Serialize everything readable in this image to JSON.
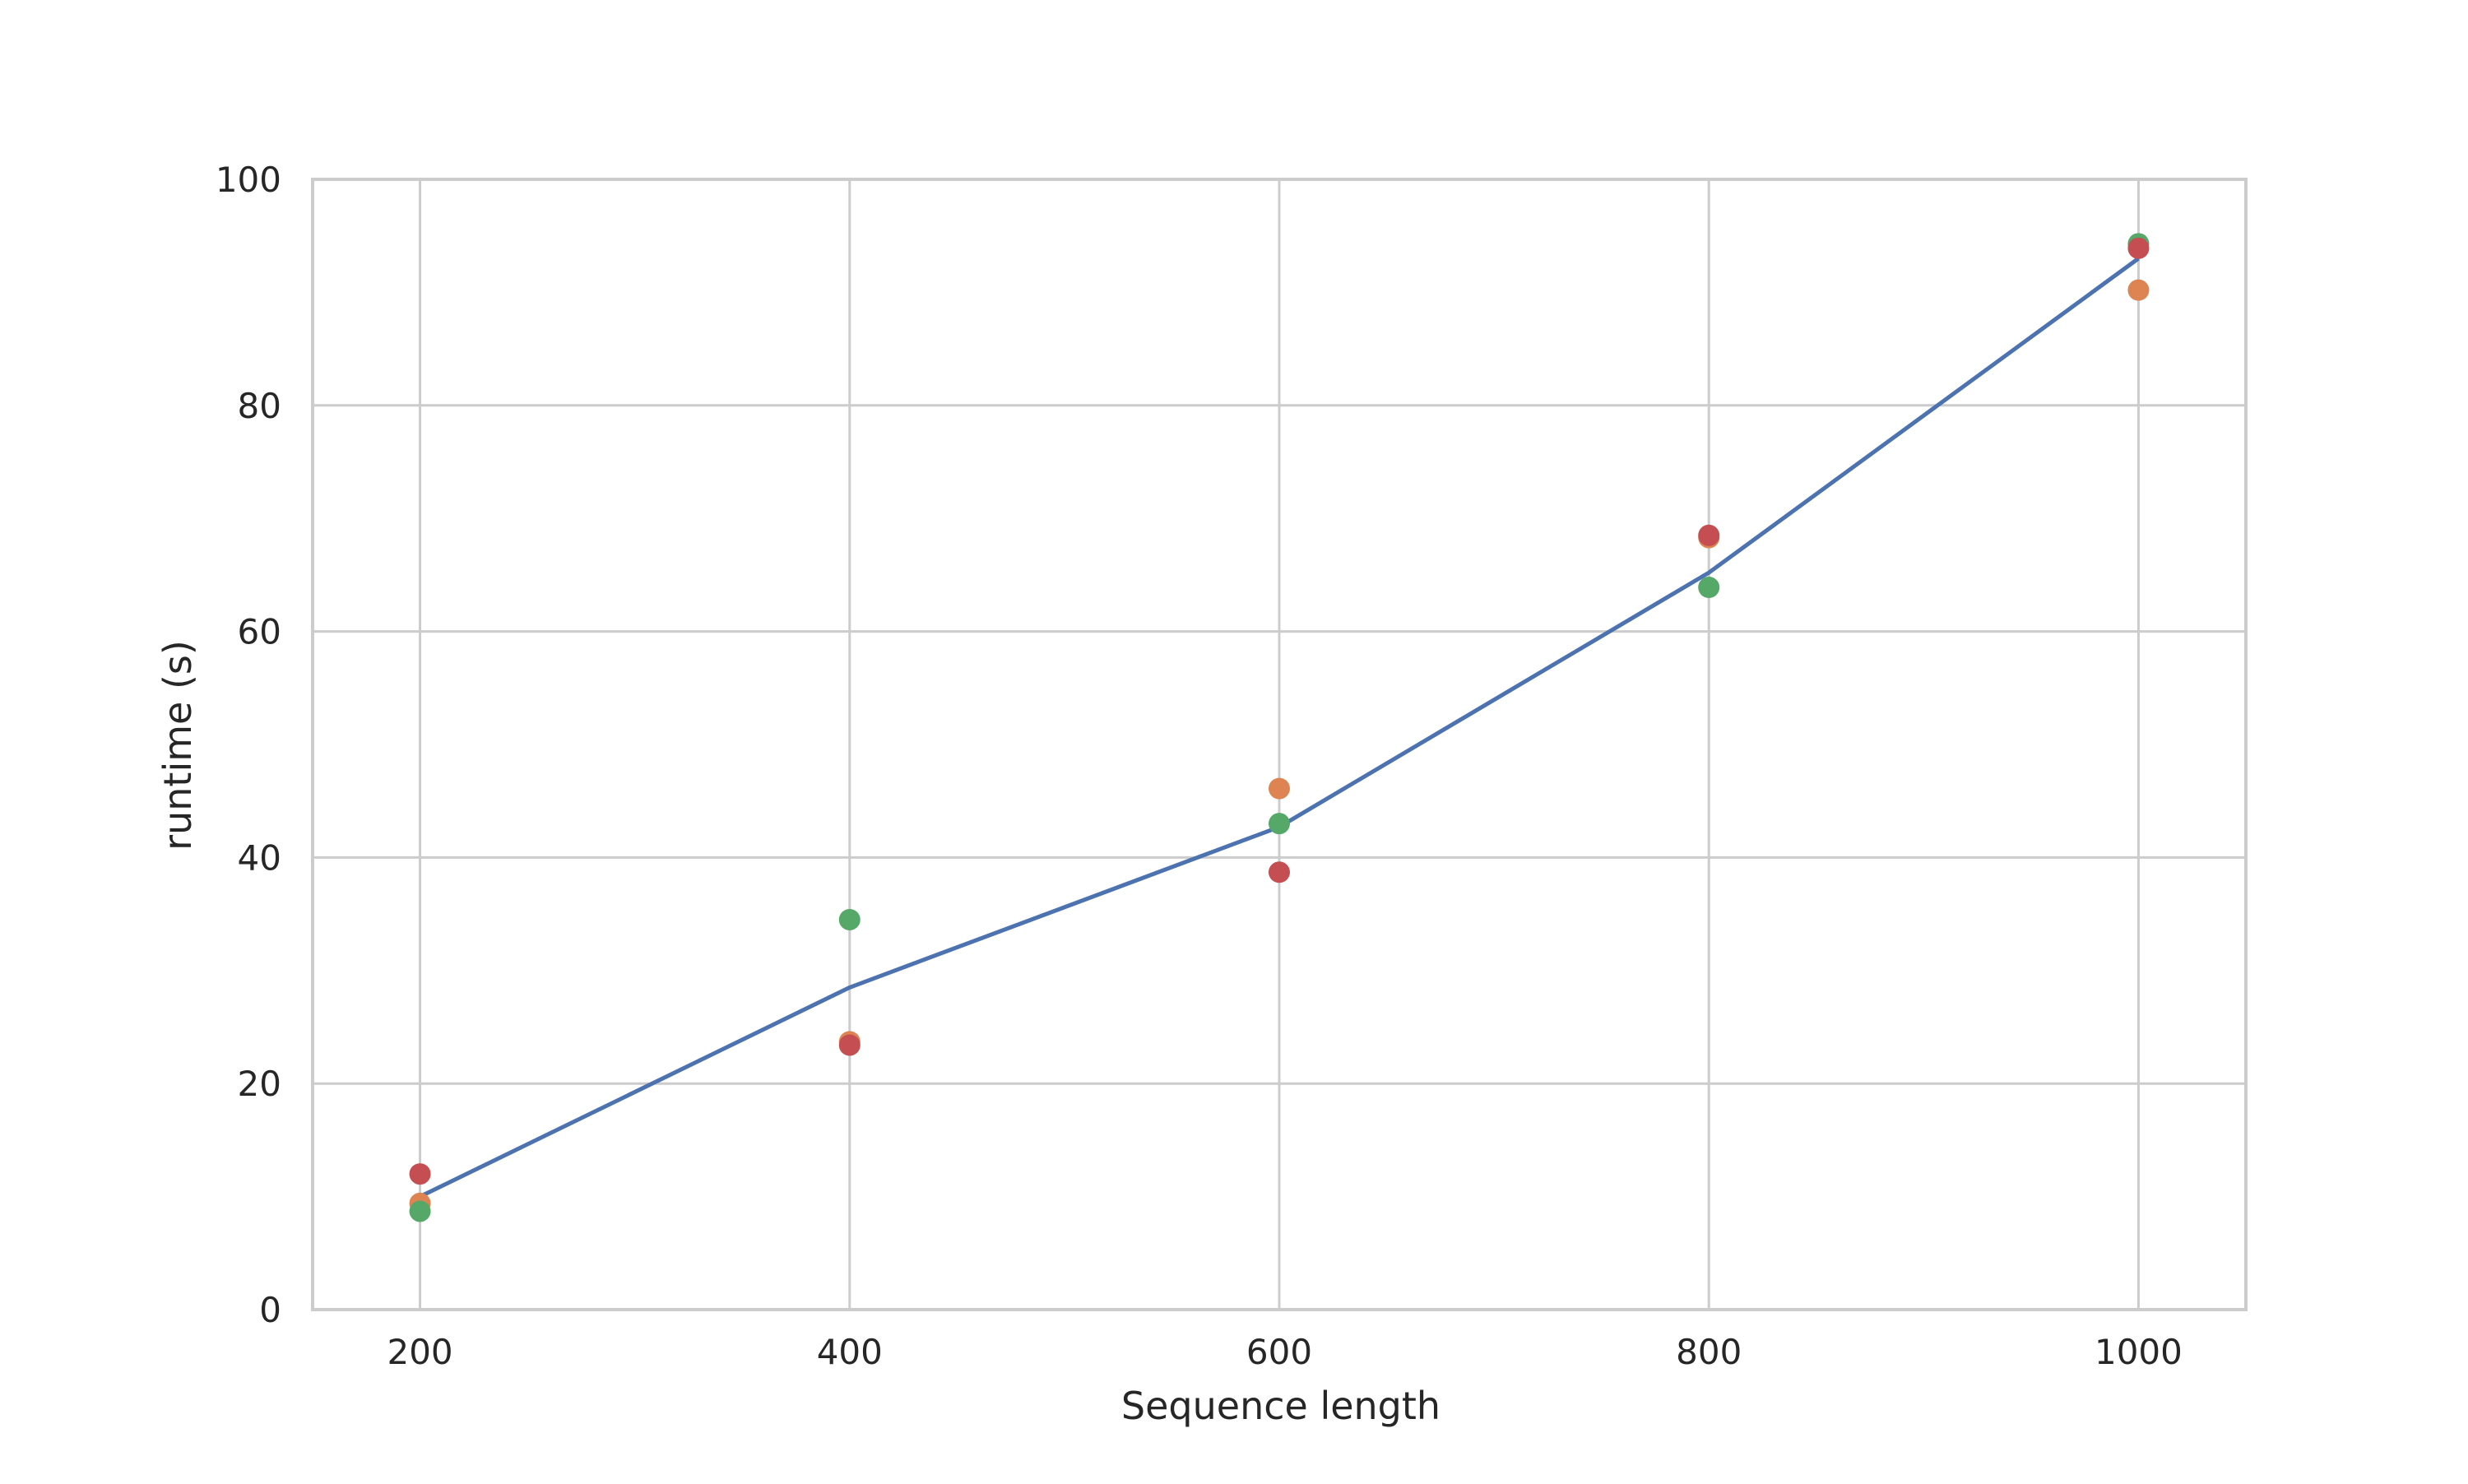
{
  "chart_data": {
    "type": "scatter",
    "title": "",
    "xlabel": "Sequence length",
    "ylabel": "runtime (s)",
    "xlim": [
      150,
      1050
    ],
    "ylim": [
      0,
      100
    ],
    "x_ticks": [
      200,
      400,
      600,
      800,
      1000
    ],
    "y_ticks": [
      0,
      20,
      40,
      60,
      80,
      100
    ],
    "grid": true,
    "legend": "none",
    "series": [
      {
        "kind": "line",
        "color": "#4c72b0",
        "x": [
          200,
          400,
          600,
          800,
          1000
        ],
        "values": [
          10.0,
          28.5,
          42.7,
          65.2,
          93.0
        ]
      },
      {
        "kind": "points",
        "color": "#dd8452",
        "x": [
          200,
          400,
          600,
          800,
          1000
        ],
        "values": [
          9.4,
          23.7,
          46.1,
          68.3,
          90.2
        ]
      },
      {
        "kind": "points",
        "color": "#55a868",
        "x": [
          200,
          400,
          600,
          800,
          1000
        ],
        "values": [
          8.7,
          34.5,
          43.0,
          63.9,
          94.3
        ]
      },
      {
        "kind": "points",
        "color": "#c44e52",
        "x": [
          200,
          400,
          600,
          800,
          1000
        ],
        "values": [
          12.0,
          23.4,
          38.7,
          68.5,
          93.9
        ]
      }
    ]
  },
  "colors": {
    "grid": "#cccccc",
    "frame": "#cccccc",
    "text": "#262626"
  }
}
